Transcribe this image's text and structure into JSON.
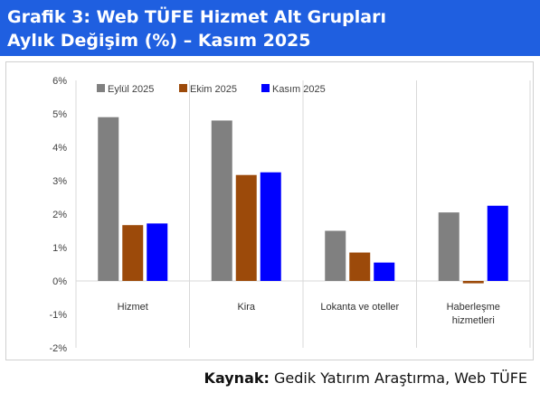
{
  "header": {
    "title_line1": "Grafik 3: Web TÜFE Hizmet Alt Grupları",
    "title_line2": "Aylık Değişim (%) – Kasım 2025",
    "background_color": "#1f5fe0"
  },
  "source": {
    "label": "Kaynak",
    "separator": ":",
    "text": " Gedik Yatırım Araştırma, Web TÜFE"
  },
  "chart_data": {
    "type": "bar",
    "categories": [
      "Hizmet",
      "Kira",
      "Lokanta ve oteller",
      "Haberleşme hizmetleri"
    ],
    "category_lines": [
      [
        "Hizmet"
      ],
      [
        "Kira"
      ],
      [
        "Lokanta ve oteller"
      ],
      [
        "Haberleşme",
        "hizmetleri"
      ]
    ],
    "series": [
      {
        "name": "Eylül 2025",
        "color": "#808080",
        "values": [
          4.9,
          4.8,
          1.5,
          2.05
        ]
      },
      {
        "name": "Ekim 2025",
        "color": "#9c4a0a",
        "values": [
          1.67,
          3.17,
          0.85,
          -0.07
        ]
      },
      {
        "name": "Kasım 2025",
        "color": "#0000ff",
        "values": [
          1.72,
          3.25,
          0.55,
          2.25
        ]
      }
    ],
    "ylim": [
      -2,
      6
    ],
    "yticks": [
      "-2%",
      "-1%",
      "0%",
      "1%",
      "2%",
      "3%",
      "4%",
      "5%",
      "6%"
    ],
    "ytick_values": [
      -2,
      -1,
      0,
      1,
      2,
      3,
      4,
      5,
      6
    ],
    "legend_position": "top",
    "grid": "vertical category separators"
  }
}
